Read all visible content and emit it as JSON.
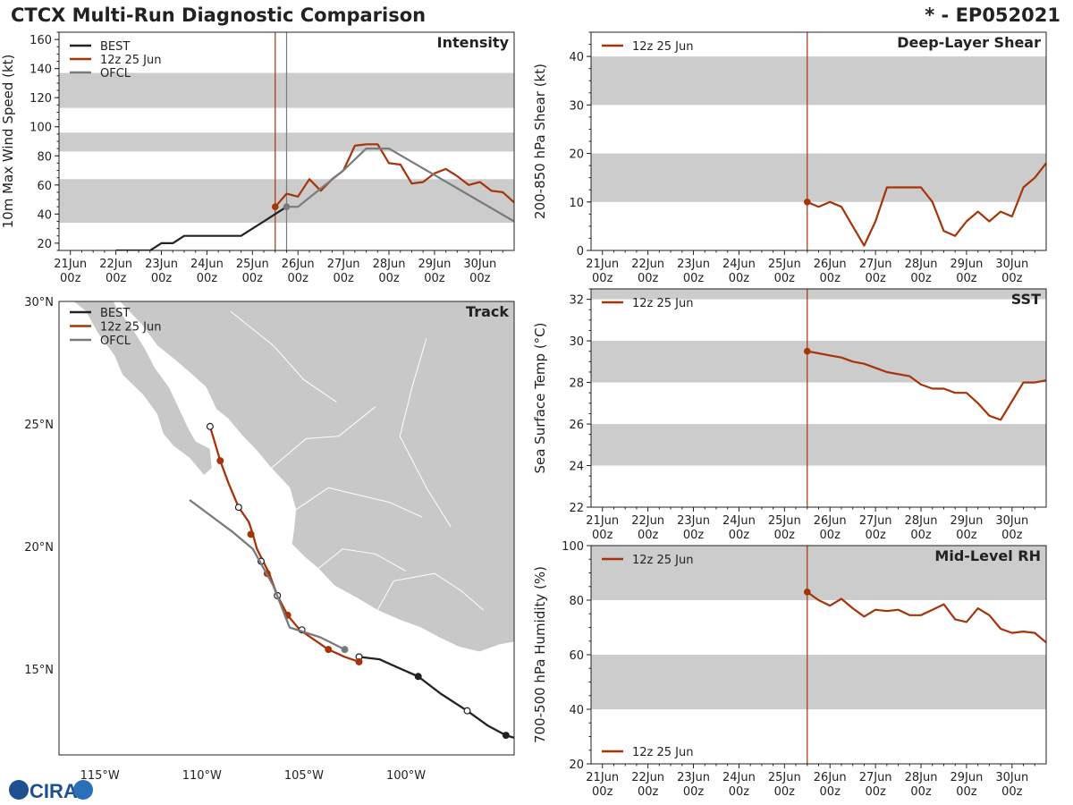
{
  "header": {
    "title_left": "CTCX Multi-Run Diagnostic Comparison",
    "title_right": "* - EP052021"
  },
  "logo": {
    "text": "CIRA"
  },
  "colors": {
    "best": "#222222",
    "run": "#a5340b",
    "ofcl": "#7a7a7a",
    "band": "#cccccc",
    "land": "#c8c8c8"
  },
  "time_axis": {
    "ticks": [
      {
        "t": 0,
        "day": "21Jun",
        "hour": "00z"
      },
      {
        "t": 24,
        "day": "22Jun",
        "hour": "00z"
      },
      {
        "t": 48,
        "day": "23Jun",
        "hour": "00z"
      },
      {
        "t": 72,
        "day": "24Jun",
        "hour": "00z"
      },
      {
        "t": 96,
        "day": "25Jun",
        "hour": "00z"
      },
      {
        "t": 120,
        "day": "26Jun",
        "hour": "00z"
      },
      {
        "t": 144,
        "day": "27Jun",
        "hour": "00z"
      },
      {
        "t": 168,
        "day": "28Jun",
        "hour": "00z"
      },
      {
        "t": 192,
        "day": "29Jun",
        "hour": "00z"
      },
      {
        "t": 216,
        "day": "30Jun",
        "hour": "00z"
      }
    ],
    "range": [
      -6,
      234
    ]
  },
  "chart_data": [
    {
      "id": "intensity",
      "type": "line",
      "title": "Intensity",
      "ylabel": "10m Max Wind Speed (kt)",
      "ylim": [
        15,
        165
      ],
      "yticks": [
        20,
        40,
        60,
        80,
        100,
        120,
        140,
        160
      ],
      "bands": [
        [
          34,
          64
        ],
        [
          83,
          96
        ],
        [
          113,
          137
        ]
      ],
      "vlines": [
        {
          "t": 108,
          "color": "run"
        },
        {
          "t": 114,
          "color": "ofcl"
        }
      ],
      "legend": [
        "BEST",
        "12z 25 Jun",
        "OFCL"
      ],
      "series": [
        {
          "name": "BEST",
          "color": "best",
          "t": [
            24,
            30,
            36,
            42,
            48,
            54,
            60,
            66,
            72,
            78,
            84,
            90,
            96,
            102,
            108,
            114
          ],
          "values": [
            15,
            15,
            15,
            15,
            20,
            20,
            25,
            25,
            25,
            25,
            25,
            25,
            30,
            35,
            40,
            45
          ]
        },
        {
          "name": "12z 25 Jun",
          "color": "run",
          "t": [
            108,
            114,
            120,
            126,
            132,
            138,
            144,
            150,
            156,
            162,
            168,
            174,
            180,
            186,
            192,
            198,
            204,
            210,
            216,
            222,
            228,
            234
          ],
          "values": [
            45,
            54,
            52,
            64,
            56,
            64,
            70,
            87,
            88,
            88,
            75,
            74,
            61,
            62,
            68,
            71,
            66,
            60,
            62,
            56,
            55,
            48
          ]
        },
        {
          "name": "OFCL",
          "color": "ofcl",
          "t": [
            114,
            120,
            144,
            156,
            168,
            234
          ],
          "values": [
            45,
            45,
            70,
            85,
            85,
            35
          ]
        }
      ],
      "markers": [
        {
          "series": "12z 25 Jun",
          "t": 108,
          "v": 45
        },
        {
          "series": "OFCL",
          "t": 114,
          "v": 45
        }
      ]
    },
    {
      "id": "shear",
      "type": "line",
      "title": "Deep-Layer Shear",
      "ylabel": "200-850 hPa Shear (kt)",
      "ylim": [
        0,
        45
      ],
      "yticks": [
        0,
        10,
        20,
        30,
        40
      ],
      "bands": [
        [
          10,
          20
        ],
        [
          30,
          40
        ]
      ],
      "vlines": [
        {
          "t": 108,
          "color": "run"
        }
      ],
      "legend": [
        "12z 25 Jun"
      ],
      "series": [
        {
          "name": "12z 25 Jun",
          "color": "run",
          "t": [
            108,
            114,
            120,
            126,
            132,
            138,
            144,
            150,
            156,
            162,
            168,
            174,
            180,
            186,
            192,
            198,
            204,
            210,
            216,
            222,
            228,
            234
          ],
          "values": [
            10,
            9,
            10,
            9,
            5,
            1,
            6,
            13,
            13,
            13,
            13,
            10,
            4,
            3,
            6,
            8,
            6,
            8,
            7,
            13,
            15,
            18
          ]
        }
      ],
      "markers": [
        {
          "series": "12z 25 Jun",
          "t": 108,
          "v": 10
        }
      ]
    },
    {
      "id": "sst",
      "type": "line",
      "title": "SST",
      "ylabel": "Sea Surface Temp (°C)",
      "ylim": [
        22,
        32.5
      ],
      "yticks": [
        22,
        24,
        26,
        28,
        30,
        32
      ],
      "bands": [
        [
          24,
          26
        ],
        [
          28,
          30
        ],
        [
          32,
          33
        ]
      ],
      "vlines": [
        {
          "t": 108,
          "color": "run"
        }
      ],
      "legend": [
        "12z 25 Jun"
      ],
      "series": [
        {
          "name": "12z 25 Jun",
          "color": "run",
          "t": [
            108,
            114,
            120,
            126,
            132,
            138,
            144,
            150,
            156,
            162,
            168,
            174,
            180,
            186,
            192,
            198,
            204,
            210,
            216,
            222,
            228,
            234
          ],
          "values": [
            29.5,
            29.4,
            29.3,
            29.2,
            29.0,
            28.9,
            28.7,
            28.5,
            28.4,
            28.3,
            27.9,
            27.7,
            27.7,
            27.5,
            27.5,
            27.0,
            26.4,
            26.2,
            27.1,
            28.0,
            28.0,
            28.1
          ]
        }
      ],
      "markers": [
        {
          "series": "12z 25 Jun",
          "t": 108,
          "v": 29.5
        }
      ]
    },
    {
      "id": "rh",
      "type": "line",
      "title": "Mid-Level RH",
      "ylabel": "700-500 hPa Humidity (%)",
      "ylim": [
        20,
        100
      ],
      "yticks": [
        20,
        40,
        60,
        80,
        100
      ],
      "bands": [
        [
          40,
          60
        ],
        [
          80,
          100
        ]
      ],
      "vlines": [
        {
          "t": 108,
          "color": "run"
        }
      ],
      "legend": [
        "12z 25 Jun"
      ],
      "series": [
        {
          "name": "12z 25 Jun",
          "color": "run",
          "t": [
            108,
            114,
            120,
            126,
            132,
            138,
            144,
            150,
            156,
            162,
            168,
            174,
            180,
            186,
            192,
            198,
            204,
            210,
            216,
            222,
            228,
            234
          ],
          "values": [
            83,
            80,
            78,
            80.5,
            77,
            74,
            76.5,
            76,
            76.5,
            74.5,
            74.5,
            76.5,
            78.5,
            73,
            72,
            77,
            74.5,
            69.5,
            68,
            68.5,
            68,
            64.5
          ]
        }
      ],
      "markers": [
        {
          "series": "12z 25 Jun",
          "t": 108,
          "v": 83
        }
      ]
    },
    {
      "id": "track",
      "type": "scatter",
      "title": "Track",
      "xlim": [
        -117,
        -94.7
      ],
      "ylim": [
        11.5,
        30
      ],
      "xticks": [
        {
          "v": -115,
          "label": "115°W"
        },
        {
          "v": -110,
          "label": "110°W"
        },
        {
          "v": -105,
          "label": "105°W"
        },
        {
          "v": -100,
          "label": "100°W"
        }
      ],
      "yticks": [
        {
          "v": 15,
          "label": "15°N"
        },
        {
          "v": 20,
          "label": "20°N"
        },
        {
          "v": 25,
          "label": "25°N"
        },
        {
          "v": 30,
          "label": "30°N"
        }
      ],
      "legend": [
        "BEST",
        "12z 25 Jun",
        "OFCL"
      ],
      "series": [
        {
          "name": "BEST",
          "color": "best",
          "lon": [
            -94.7,
            -95.1,
            -96.0,
            -97.0,
            -98.3,
            -99.4,
            -100.5,
            -101.3,
            -102.3
          ],
          "lat": [
            12.2,
            12.3,
            12.7,
            13.3,
            14.0,
            14.7,
            15.1,
            15.4,
            15.5
          ],
          "points": [
            {
              "lon": -95.1,
              "lat": 12.3,
              "fill": "solid"
            },
            {
              "lon": -97.0,
              "lat": 13.3,
              "fill": "open"
            },
            {
              "lon": -99.4,
              "lat": 14.7,
              "fill": "solid"
            },
            {
              "lon": -102.3,
              "lat": 15.5,
              "fill": "open"
            }
          ]
        },
        {
          "name": "12z 25 Jun",
          "color": "run",
          "lon": [
            -102.3,
            -103.0,
            -103.8,
            -104.5,
            -105.2,
            -105.8,
            -106.3,
            -106.7,
            -107.0,
            -107.3,
            -107.5,
            -107.7,
            -108.2,
            -108.7,
            -109.1,
            -109.6
          ],
          "lat": [
            15.3,
            15.5,
            15.8,
            16.2,
            16.6,
            17.2,
            18.0,
            18.9,
            19.4,
            19.9,
            20.5,
            21.0,
            21.6,
            22.6,
            23.5,
            24.9
          ],
          "points": [
            {
              "lon": -102.3,
              "lat": 15.3,
              "fill": "solid"
            },
            {
              "lon": -103.8,
              "lat": 15.8,
              "fill": "solid"
            },
            {
              "lon": -105.1,
              "lat": 16.6,
              "fill": "open"
            },
            {
              "lon": -105.8,
              "lat": 17.2,
              "fill": "solid"
            },
            {
              "lon": -106.3,
              "lat": 18.0,
              "fill": "open"
            },
            {
              "lon": -106.8,
              "lat": 18.9,
              "fill": "solid"
            },
            {
              "lon": -107.1,
              "lat": 19.4,
              "fill": "open"
            },
            {
              "lon": -107.6,
              "lat": 20.5,
              "fill": "solid"
            },
            {
              "lon": -108.2,
              "lat": 21.6,
              "fill": "open"
            },
            {
              "lon": -109.1,
              "lat": 23.5,
              "fill": "solid"
            },
            {
              "lon": -109.6,
              "lat": 24.9,
              "fill": "open"
            }
          ]
        },
        {
          "name": "OFCL",
          "color": "ofcl",
          "lon": [
            -103.0,
            -104.2,
            -105.7,
            -106.5,
            -107.5,
            -108.5,
            -110.6
          ],
          "lat": [
            15.8,
            16.3,
            16.7,
            18.4,
            19.9,
            20.6,
            21.9
          ],
          "points": [
            {
              "lon": -103.0,
              "lat": 15.8,
              "fill": "solid"
            }
          ]
        }
      ]
    }
  ]
}
